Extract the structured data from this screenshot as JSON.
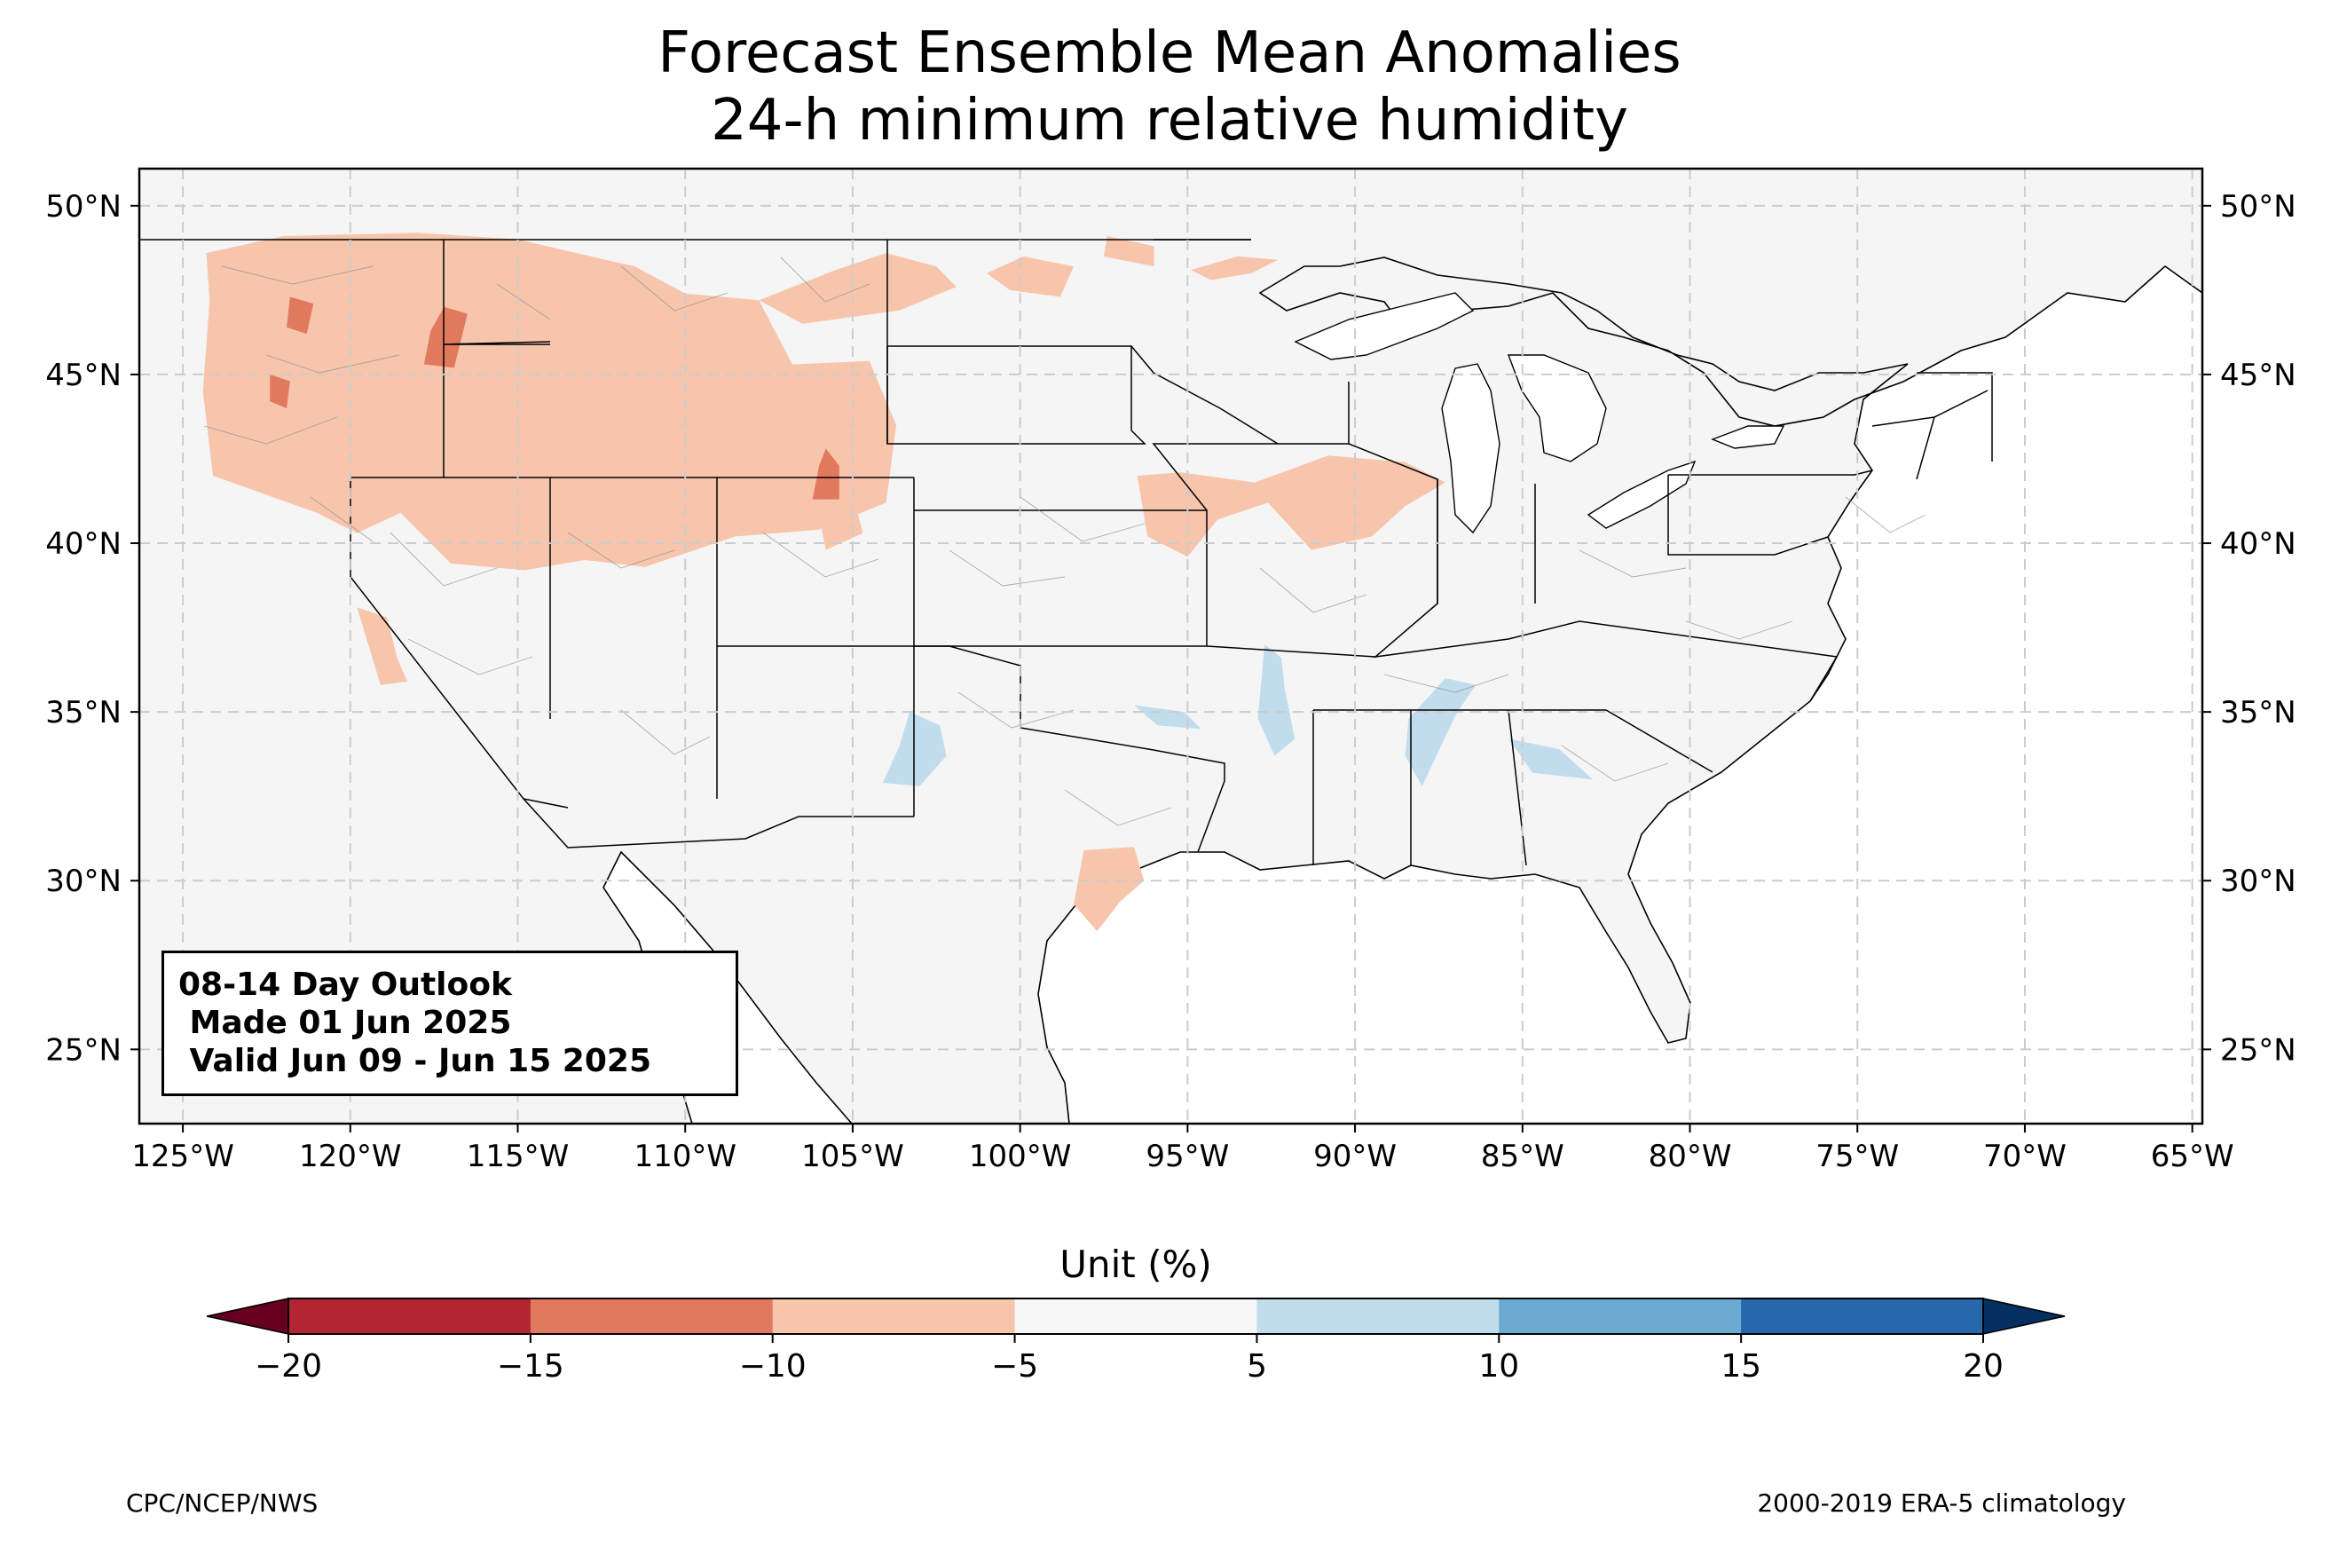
{
  "title": {
    "line1": "Forecast Ensemble Mean Anomalies",
    "line2": "24-h minimum relative humidity"
  },
  "map": {
    "extent": {
      "lon_min": -126.3,
      "lon_max": -64.7,
      "lat_min": 22.8,
      "lat_max": 51.1
    },
    "grid": true,
    "lon_ticks": [
      {
        "value": -125,
        "label": "125°W"
      },
      {
        "value": -120,
        "label": "120°W"
      },
      {
        "value": -115,
        "label": "115°W"
      },
      {
        "value": -110,
        "label": "110°W"
      },
      {
        "value": -105,
        "label": "105°W"
      },
      {
        "value": -100,
        "label": "100°W"
      },
      {
        "value": -95,
        "label": "95°W"
      },
      {
        "value": -90,
        "label": "90°W"
      },
      {
        "value": -85,
        "label": "85°W"
      },
      {
        "value": -80,
        "label": "80°W"
      },
      {
        "value": -75,
        "label": "75°W"
      },
      {
        "value": -70,
        "label": "70°W"
      },
      {
        "value": -65,
        "label": "65°W"
      }
    ],
    "lat_ticks": [
      {
        "value": 25,
        "label": "25°N"
      },
      {
        "value": 30,
        "label": "30°N"
      },
      {
        "value": 35,
        "label": "35°N"
      },
      {
        "value": 40,
        "label": "40°N"
      },
      {
        "value": 45,
        "label": "45°N"
      },
      {
        "value": 50,
        "label": "50°N"
      }
    ],
    "land_color": "#f5f5f5",
    "anomaly_regions": [
      {
        "name": "northwest-dry",
        "class": "-10 to -5",
        "color": "#f7c5ab",
        "polygon": [
          [
            -124.3,
            48.6
          ],
          [
            -122,
            49.1
          ],
          [
            -118,
            49.2
          ],
          [
            -115,
            49
          ],
          [
            -111.5,
            48.2
          ],
          [
            -110,
            47.4
          ],
          [
            -107.8,
            47.2
          ],
          [
            -106.8,
            45.3
          ],
          [
            -104.5,
            45.4
          ],
          [
            -103.7,
            43.5
          ],
          [
            -104,
            41.2
          ],
          [
            -106,
            40.4
          ],
          [
            -108.5,
            40.2
          ],
          [
            -111.2,
            39.3
          ],
          [
            -113,
            39.5
          ],
          [
            -114.8,
            39.2
          ],
          [
            -117,
            39.4
          ],
          [
            -118.5,
            40.9
          ],
          [
            -119.8,
            40.3
          ],
          [
            -121,
            40.9
          ],
          [
            -124.1,
            42.0
          ],
          [
            -124.4,
            44.5
          ],
          [
            -124.2,
            47.2
          ]
        ]
      },
      {
        "name": "montana-east-dry",
        "class": "-10 to -5",
        "color": "#f7c5ab",
        "polygon": [
          [
            -107.8,
            47.2
          ],
          [
            -105.5,
            48.1
          ],
          [
            -104,
            48.6
          ],
          [
            -102.5,
            48.2
          ],
          [
            -101.9,
            47.6
          ],
          [
            -103.6,
            46.9
          ],
          [
            -106.5,
            46.5
          ]
        ]
      },
      {
        "name": "north-dakota-dry-1",
        "class": "-10 to -5",
        "color": "#f7c5ab",
        "polygon": [
          [
            -101.0,
            48.0
          ],
          [
            -99.9,
            48.5
          ],
          [
            -98.4,
            48.2
          ],
          [
            -98.8,
            47.3
          ],
          [
            -100.3,
            47.5
          ]
        ]
      },
      {
        "name": "north-dakota-dry-2",
        "class": "-10 to -5",
        "color": "#f7c5ab",
        "polygon": [
          [
            -97.5,
            48.5
          ],
          [
            -96.0,
            48.2
          ],
          [
            -96.0,
            48.8
          ],
          [
            -97.4,
            49.1
          ]
        ]
      },
      {
        "name": "minnesota-dry",
        "class": "-10 to -5",
        "color": "#f7c5ab",
        "polygon": [
          [
            -94.9,
            48.1
          ],
          [
            -93.5,
            48.5
          ],
          [
            -92.3,
            48.4
          ],
          [
            -93.1,
            48.0
          ],
          [
            -94.3,
            47.8
          ]
        ]
      },
      {
        "name": "colorado-dry",
        "class": "-10 to -5",
        "color": "#f7c5ab",
        "polygon": [
          [
            -106.1,
            41.3
          ],
          [
            -104.9,
            41.1
          ],
          [
            -104.7,
            40.3
          ],
          [
            -105.8,
            39.8
          ]
        ]
      },
      {
        "name": "iowa-illinois-dry",
        "class": "-10 to -5",
        "color": "#f7c5ab",
        "polygon": [
          [
            -96.5,
            42.0
          ],
          [
            -95.2,
            42.1
          ],
          [
            -93.0,
            41.8
          ],
          [
            -90.8,
            42.6
          ],
          [
            -88.5,
            42.4
          ],
          [
            -87.3,
            41.8
          ],
          [
            -88.5,
            41.1
          ],
          [
            -89.5,
            40.2
          ],
          [
            -91.3,
            39.8
          ],
          [
            -92.6,
            41.2
          ],
          [
            -94.1,
            40.7
          ],
          [
            -95.0,
            39.6
          ],
          [
            -96.2,
            40.2
          ]
        ]
      },
      {
        "name": "california-dry",
        "class": "-10 to -5",
        "color": "#f7c5ab",
        "polygon": [
          [
            -119.8,
            38.1
          ],
          [
            -118.9,
            37.8
          ],
          [
            -118.6,
            36.6
          ],
          [
            -118.3,
            35.9
          ],
          [
            -119.1,
            35.8
          ],
          [
            -119.4,
            36.8
          ]
        ]
      },
      {
        "name": "texas-dry",
        "class": "-10 to -5",
        "color": "#f7c5ab",
        "polygon": [
          [
            -98.1,
            30.9
          ],
          [
            -96.6,
            31.0
          ],
          [
            -96.3,
            30.0
          ],
          [
            -97.0,
            29.4
          ],
          [
            -97.7,
            28.5
          ],
          [
            -98.4,
            29.3
          ]
        ]
      },
      {
        "name": "idaho-strong-dry",
        "class": "-15 to -10",
        "color": "#e1795f",
        "polygon": [
          [
            -117.2,
            47.0
          ],
          [
            -116.5,
            46.8
          ],
          [
            -116.9,
            45.2
          ],
          [
            -117.8,
            45.3
          ],
          [
            -117.6,
            46.3
          ]
        ]
      },
      {
        "name": "washington-strong-dry",
        "class": "-15 to -10",
        "color": "#e1795f",
        "polygon": [
          [
            -121.8,
            47.3
          ],
          [
            -121.1,
            47.1
          ],
          [
            -121.3,
            46.2
          ],
          [
            -121.9,
            46.4
          ]
        ]
      },
      {
        "name": "oregon-strong-dry",
        "class": "-15 to -10",
        "color": "#e1795f",
        "polygon": [
          [
            -122.4,
            45.0
          ],
          [
            -121.8,
            44.8
          ],
          [
            -121.9,
            44.0
          ],
          [
            -122.4,
            44.2
          ]
        ]
      },
      {
        "name": "wyoming-strong-dry",
        "class": "-15 to -10",
        "color": "#e1795f",
        "polygon": [
          [
            -105.8,
            42.8
          ],
          [
            -105.4,
            42.3
          ],
          [
            -105.4,
            41.3
          ],
          [
            -106.2,
            41.3
          ],
          [
            -106.0,
            42.3
          ]
        ]
      },
      {
        "name": "new-mexico-wet",
        "class": "5 to 10",
        "color": "#c1dcec",
        "polygon": [
          [
            -103.3,
            35.0
          ],
          [
            -102.4,
            34.6
          ],
          [
            -102.2,
            33.7
          ],
          [
            -103.0,
            32.8
          ],
          [
            -104.1,
            32.9
          ],
          [
            -103.6,
            34.0
          ]
        ]
      },
      {
        "name": "oklahoma-wet",
        "class": "5 to 10",
        "color": "#c1dcec",
        "polygon": [
          [
            -96.6,
            35.2
          ],
          [
            -95.1,
            35.0
          ],
          [
            -94.6,
            34.5
          ],
          [
            -95.9,
            34.6
          ]
        ]
      },
      {
        "name": "arkansas-wet",
        "class": "5 to 10",
        "color": "#c1dcec",
        "polygon": [
          [
            -92.7,
            37.0
          ],
          [
            -92.2,
            36.6
          ],
          [
            -92.1,
            35.7
          ],
          [
            -91.8,
            34.2
          ],
          [
            -92.4,
            33.7
          ],
          [
            -92.9,
            34.8
          ]
        ]
      },
      {
        "name": "alabama-wet",
        "class": "5 to 10",
        "color": "#c1dcec",
        "polygon": [
          [
            -87.3,
            36.0
          ],
          [
            -86.4,
            35.8
          ],
          [
            -87.0,
            34.9
          ],
          [
            -88.0,
            32.8
          ],
          [
            -88.5,
            33.7
          ],
          [
            -88.4,
            34.8
          ]
        ]
      },
      {
        "name": "georgia-wet",
        "class": "5 to 10",
        "color": "#c1dcec",
        "polygon": [
          [
            -85.4,
            34.2
          ],
          [
            -83.9,
            33.9
          ],
          [
            -82.9,
            33.0
          ],
          [
            -84.7,
            33.2
          ]
        ]
      }
    ]
  },
  "info_box": {
    "line1": "08-14 Day Outlook",
    "line2": " Made 01 Jun 2025",
    "line3": " Valid Jun 09 - Jun 15 2025"
  },
  "colorbar": {
    "label": "Unit (%)",
    "ticks": [
      -20,
      -15,
      -10,
      -5,
      5,
      10,
      15,
      20
    ],
    "tick_labels": [
      "−20",
      "−15",
      "−10",
      "−5",
      "5",
      "10",
      "15",
      "20"
    ],
    "colors": [
      "#b32530",
      "#e1795f",
      "#f7c5ab",
      "#f7f7f7",
      "#c1dcec",
      "#6aaad0",
      "#2568ac"
    ],
    "under_color": "#67001f",
    "over_color": "#053061"
  },
  "credits": {
    "left": "CPC/NCEP/NWS",
    "right": "2000-2019 ERA-5 climatology"
  }
}
